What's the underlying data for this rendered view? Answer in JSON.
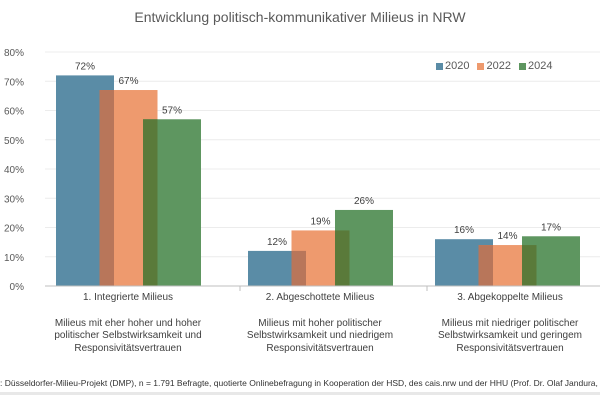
{
  "chart_data": {
    "type": "bar",
    "title": "Entwicklung politisch-kommunikativer Milieus in NRW",
    "categories": [
      "1. Integrierte Milieus",
      "2. Abgeschottete Milieus",
      "3. Abgekoppelte Milieus"
    ],
    "category_descriptions": [
      "Milieus mit eher hoher und hoher politischer Selbstwirksamkeit und Responsivitätsvertrauen",
      "Milieus mit hoher politischer Selbstwirksamkeit und niedrigem Responsivitätsvertrauen",
      "Milieus mit niedriger politischer Selbstwirksamkeit und geringem Responsivitätsvertrauen"
    ],
    "series": [
      {
        "name": "2020",
        "color": "#5a8ca6",
        "values": [
          72,
          12,
          16
        ]
      },
      {
        "name": "2022",
        "color": "#ee9a6e",
        "values": [
          67,
          19,
          14
        ]
      },
      {
        "name": "2024",
        "color": "#5e9660",
        "values": [
          57,
          26,
          17
        ]
      }
    ],
    "value_labels": [
      [
        "72%",
        "12%",
        "16%"
      ],
      [
        "67%",
        "19%",
        "14%"
      ],
      [
        "57%",
        "26%",
        "17%"
      ]
    ],
    "ylim": [
      0,
      80
    ],
    "yticks": [
      "0%",
      "10%",
      "20%",
      "30%",
      "40%",
      "50%",
      "60%",
      "70%",
      "80%"
    ],
    "grid": true,
    "legend_position": "top-right",
    "overlap_colors": {
      "2022_on_2020": "#b8765a",
      "2024_on_2022": "#5a7a3a"
    }
  },
  "footer": ": Düsseldorfer-Milieu-Projekt (DMP), n = 1.791 Befragte, quotierte Onlinebefragung in Kooperation der HSD, des cais.nrw und der HHU (Prof. Dr. Olaf Jandura, Prof. Dr. Christiane Eilders"
}
